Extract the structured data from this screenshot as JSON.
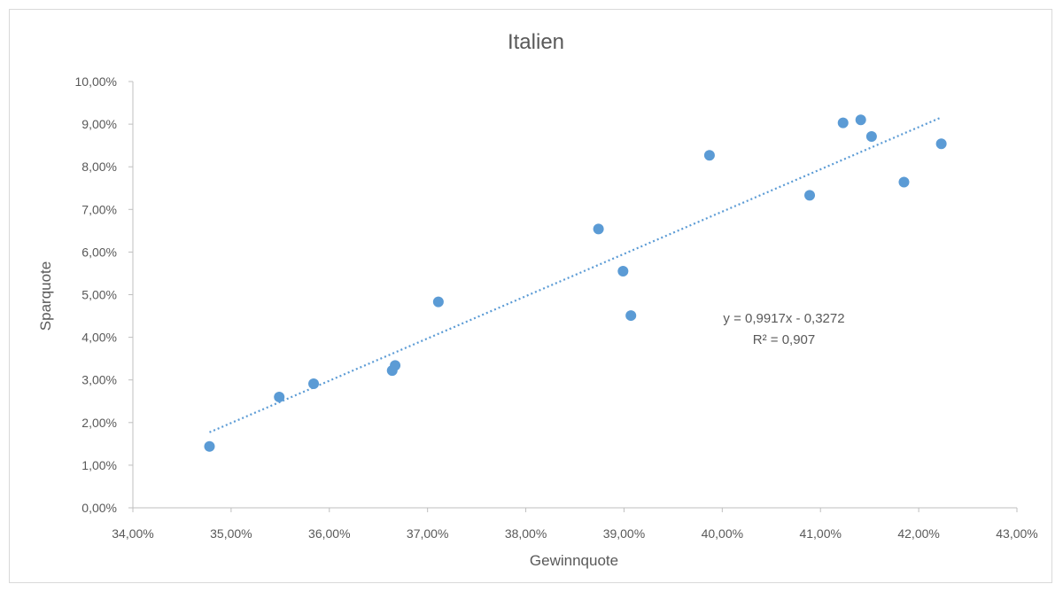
{
  "chart_data": {
    "type": "scatter",
    "title": "Italien",
    "xlabel": "Gewinnquote",
    "ylabel": "Sparquote",
    "xlim": [
      0.34,
      0.43
    ],
    "ylim": [
      0.0,
      0.1
    ],
    "x_ticks": [
      "34,00%",
      "35,00%",
      "36,00%",
      "37,00%",
      "38,00%",
      "39,00%",
      "40,00%",
      "41,00%",
      "42,00%",
      "43,00%"
    ],
    "y_ticks": [
      "0,00%",
      "1,00%",
      "2,00%",
      "3,00%",
      "4,00%",
      "5,00%",
      "6,00%",
      "7,00%",
      "8,00%",
      "9,00%",
      "10,00%"
    ],
    "grid": false,
    "legend": "none",
    "marker_color": "#5b9bd5",
    "series": [
      {
        "points": [
          [
            0.3478,
            0.0144
          ],
          [
            0.3549,
            0.026
          ],
          [
            0.3584,
            0.0291
          ],
          [
            0.3664,
            0.0322
          ],
          [
            0.3667,
            0.0334
          ],
          [
            0.3711,
            0.0483
          ],
          [
            0.3874,
            0.0654
          ],
          [
            0.3899,
            0.0555
          ],
          [
            0.3907,
            0.0451
          ],
          [
            0.3987,
            0.0827
          ],
          [
            0.4089,
            0.0733
          ],
          [
            0.4123,
            0.0903
          ],
          [
            0.4141,
            0.091
          ],
          [
            0.4152,
            0.0871
          ],
          [
            0.4185,
            0.0764
          ],
          [
            0.4223,
            0.0854
          ]
        ]
      }
    ],
    "trendline": {
      "type": "linear",
      "slope": 0.9917,
      "intercept": -0.3272,
      "x_range": [
        0.3478,
        0.4223
      ],
      "style": "dotted",
      "color": "#5b9bd5",
      "equation": "y = 0,9917x - 0,3272",
      "r_squared": "R² = 0,907"
    }
  }
}
